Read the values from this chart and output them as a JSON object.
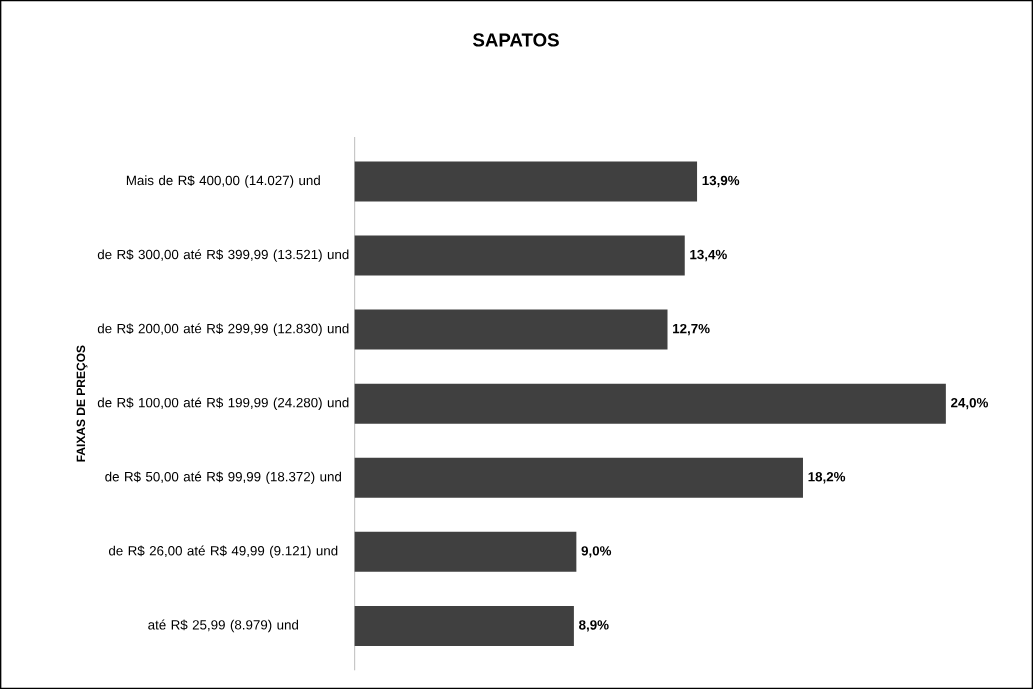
{
  "chart_data": {
    "type": "bar",
    "orientation": "horizontal",
    "title": "SAPATOS",
    "ylabel": "FAIXAS DE PREÇOS",
    "categories": [
      "Mais de R$ 400,00 (14.027) und",
      "de R$ 300,00 até R$ 399,99 (13.521) und",
      "de R$ 200,00 até R$ 299,99 (12.830) und",
      "de R$ 100,00 até R$ 199,99 (24.280) und",
      "de R$ 50,00 até R$ 99,99 (18.372) und",
      "de R$ 26,00 até R$ 49,99 (9.121) und",
      "até R$ 25,99 (8.979) und"
    ],
    "values": [
      13.9,
      13.4,
      12.7,
      24.0,
      18.2,
      9.0,
      8.9
    ],
    "value_labels": [
      "13,9%",
      "13,4%",
      "12,7%",
      "24,0%",
      "18,2%",
      "9,0%",
      "8,9%"
    ],
    "color": "#404040"
  }
}
